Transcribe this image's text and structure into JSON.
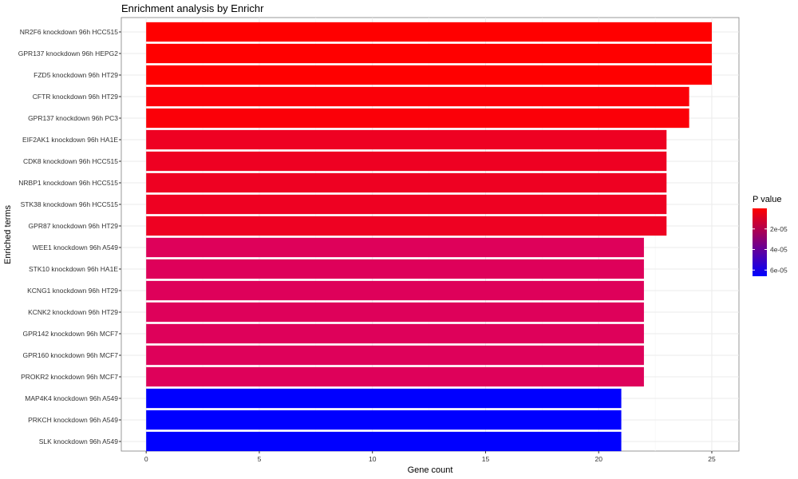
{
  "chart_data": {
    "type": "bar",
    "orientation": "horizontal",
    "title": "Enrichment analysis by Enrichr",
    "xlabel": "Gene count",
    "ylabel": "Enriched terms",
    "xlim": [
      -1.1,
      26.2
    ],
    "xticks": [
      0,
      5,
      10,
      15,
      20,
      25
    ],
    "grid": true,
    "categories": [
      "NR2F6 knockdown 96h HCC515",
      "GPR137 knockdown 96h HEPG2",
      "FZD5 knockdown 96h HT29",
      "CFTR knockdown 96h HT29",
      "GPR137 knockdown 96h PC3",
      "EIF2AK1 knockdown 96h HA1E",
      "CDK8 knockdown 96h HCC515",
      "NRBP1 knockdown 96h HCC515",
      "STK38 knockdown 96h HCC515",
      "GPR87 knockdown 96h HT29",
      "WEE1 knockdown 96h A549",
      "STK10 knockdown 96h HA1E",
      "KCNG1 knockdown 96h HT29",
      "KCNK2 knockdown 96h HT29",
      "GPR142 knockdown 96h MCF7",
      "GPR160 knockdown 96h MCF7",
      "PROKR2 knockdown 96h MCF7",
      "MAP4K4 knockdown 96h A549",
      "PRKCH knockdown 96h A549",
      "SLK knockdown 96h A549"
    ],
    "values": [
      25,
      25,
      25,
      24,
      24,
      23,
      23,
      23,
      23,
      23,
      22,
      22,
      22,
      22,
      22,
      22,
      22,
      21,
      21,
      21
    ],
    "colors": [
      "#ff0000",
      "#ff0000",
      "#ff0000",
      "#fb0008",
      "#fb0008",
      "#ee0122",
      "#ee0122",
      "#ee0122",
      "#ee0122",
      "#ee0122",
      "#de015a",
      "#de015a",
      "#de015a",
      "#de015a",
      "#de015a",
      "#de015a",
      "#de015a",
      "#0000ff",
      "#0000ff",
      "#0000ff"
    ],
    "legend": {
      "title": "P value",
      "placement": "right",
      "range": [
        0,
        6.6e-05
      ],
      "ticks": [
        {
          "label": "2e-05",
          "value": 2e-05
        },
        {
          "label": "4e-05",
          "value": 4e-05
        },
        {
          "label": "6e-05",
          "value": 6e-05
        }
      ],
      "low_color": "#ff0000",
      "high_color": "#0000ff"
    }
  }
}
